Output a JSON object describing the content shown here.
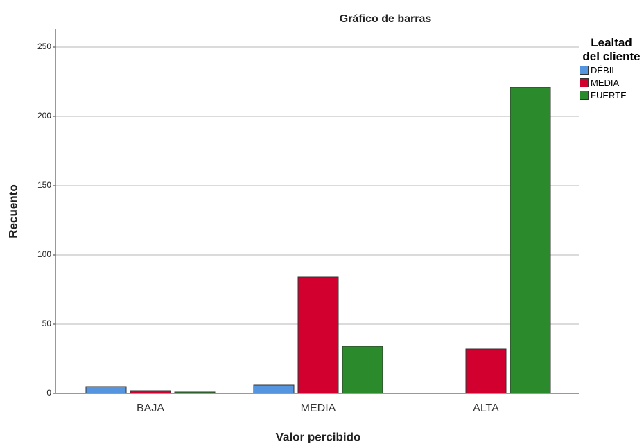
{
  "chart_data": {
    "type": "bar",
    "title": "Gráfico de barras",
    "x_label": "Valor percibido",
    "y_label": "Recuento",
    "legend_title": "Lealtad del cliente",
    "legend_position": "right",
    "categories": [
      "BAJA",
      "MEDIA",
      "ALTA"
    ],
    "series": [
      {
        "name": "DÉBIL",
        "color": "#5595e0",
        "values": [
          5,
          6,
          0
        ]
      },
      {
        "name": "MEDIA",
        "color": "#d2002f",
        "values": [
          2,
          84,
          32
        ]
      },
      {
        "name": "FUERTE",
        "color": "#2b8a2b",
        "values": [
          1,
          34,
          221
        ]
      }
    ],
    "ylim": [
      0,
      263
    ],
    "yticks": [
      0,
      50,
      100,
      150,
      200,
      250
    ],
    "grid": true
  }
}
